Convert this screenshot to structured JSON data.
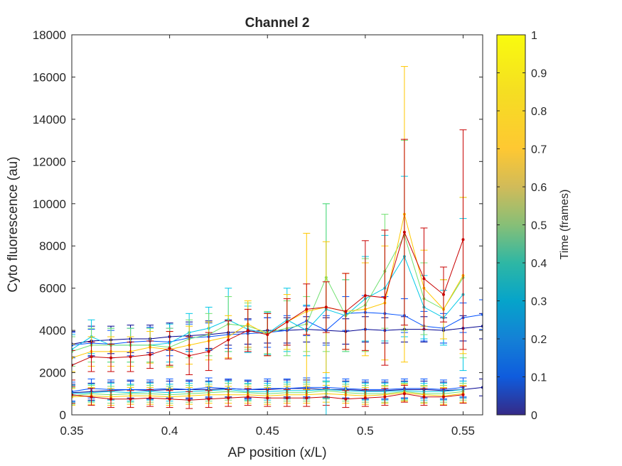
{
  "chart_data": {
    "type": "line",
    "title": "Channel 2",
    "xlabel": "AP position (x/L)",
    "ylabel": "Cyto fluorescence (au)",
    "xlim": [
      0.35,
      0.56
    ],
    "ylim": [
      0,
      18000
    ],
    "xticks": [
      "0.35",
      "0.4",
      "0.45",
      "0.5",
      "0.55"
    ],
    "yticks": [
      "0",
      "2000",
      "4000",
      "6000",
      "8000",
      "10000",
      "12000",
      "14000",
      "16000",
      "18000"
    ],
    "x": [
      0.35,
      0.36,
      0.37,
      0.38,
      0.39,
      0.4,
      0.41,
      0.42,
      0.43,
      0.44,
      0.45,
      0.46,
      0.47,
      0.48,
      0.49,
      0.5,
      0.51,
      0.52,
      0.53,
      0.54,
      0.55,
      0.56
    ],
    "error_bars": true,
    "colormap": "jet",
    "colorbar": {
      "label": "Time (frames)",
      "ticks": [
        "0",
        "0.1",
        "0.2",
        "0.3",
        "0.4",
        "0.5",
        "0.6",
        "0.7",
        "0.8",
        "0.9",
        "1"
      ],
      "range": [
        0,
        1
      ]
    },
    "series": [
      {
        "t": 0.0,
        "color": "#00008f",
        "values": [
          3350,
          3500,
          3550,
          3600,
          3600,
          3700,
          3750,
          3800,
          3900,
          3950,
          4000,
          4000,
          4050,
          4000,
          3950,
          4050,
          4000,
          4050,
          4050,
          4000,
          4100,
          4200
        ],
        "errors": [
          600,
          700,
          650,
          650,
          650,
          650,
          650,
          650,
          600,
          600,
          600,
          600,
          600,
          600,
          600,
          600,
          600,
          600,
          600,
          600,
          600,
          600
        ]
      },
      {
        "t": 0.15,
        "color": "#0050ff",
        "values": [
          3300,
          3400,
          3350,
          3450,
          3500,
          3450,
          3650,
          3700,
          3800,
          3850,
          3900,
          4000,
          4450,
          4000,
          4800,
          4850,
          4800,
          4700,
          4200,
          4100,
          4600,
          4750
        ],
        "errors": [
          600,
          650,
          650,
          650,
          650,
          650,
          650,
          650,
          650,
          650,
          700,
          700,
          700,
          700,
          800,
          800,
          800,
          800,
          700,
          700,
          700,
          700
        ]
      },
      {
        "t": 0.4,
        "color": "#00c8e6",
        "values": [
          3100,
          3700,
          3300,
          3300,
          3300,
          3400,
          3900,
          4100,
          4500,
          4050,
          3850,
          4500,
          4000,
          5000,
          4700,
          5500,
          6000,
          7500,
          5100,
          4600,
          5700,
          null
        ],
        "errors": [
          700,
          800,
          800,
          800,
          800,
          900,
          900,
          1000,
          1500,
          1100,
          1000,
          1500,
          1200,
          5000,
          1700,
          2000,
          2500,
          3800,
          1500,
          1300,
          3600,
          null
        ]
      },
      {
        "t": 0.6,
        "color": "#70e070",
        "values": [
          3000,
          3300,
          3300,
          3300,
          3300,
          3200,
          3600,
          3800,
          4300,
          4200,
          3900,
          4100,
          4300,
          6500,
          4700,
          5200,
          6800,
          8500,
          5500,
          5000,
          6500,
          null
        ],
        "errors": [
          700,
          800,
          800,
          800,
          800,
          900,
          900,
          1000,
          1300,
          1100,
          1000,
          1300,
          1300,
          3500,
          1700,
          2200,
          2700,
          4500,
          1700,
          1400,
          3800,
          null
        ]
      },
      {
        "t": 0.85,
        "color": "#ffc800",
        "values": [
          2700,
          3000,
          3000,
          3000,
          3200,
          3100,
          3300,
          3500,
          3700,
          4300,
          3800,
          4400,
          4900,
          5100,
          4900,
          5000,
          5300,
          9500,
          6000,
          5000,
          6600,
          null
        ],
        "errors": [
          650,
          700,
          700,
          700,
          750,
          850,
          900,
          900,
          1000,
          1100,
          1000,
          1300,
          3700,
          3100,
          1800,
          2200,
          2700,
          7000,
          1800,
          1400,
          3700,
          null
        ]
      },
      {
        "t": 1.0,
        "color": "#c80000",
        "values": [
          2350,
          2750,
          2700,
          2750,
          2850,
          3150,
          2800,
          3000,
          3550,
          4000,
          3800,
          4400,
          5000,
          5100,
          4900,
          5650,
          5550,
          8650,
          6450,
          5700,
          8300,
          null
        ],
        "errors": [
          700,
          700,
          650,
          700,
          650,
          800,
          900,
          900,
          900,
          1000,
          1000,
          1100,
          1200,
          1200,
          1800,
          2600,
          3200,
          4400,
          2400,
          1300,
          5200,
          null
        ]
      }
    ],
    "lower_series": [
      {
        "t": 0.0,
        "color": "#00008f",
        "values": [
          1050,
          1100,
          1150,
          1200,
          1150,
          1200,
          1200,
          1200,
          1250,
          1200,
          1200,
          1250,
          1250,
          1200,
          1200,
          1150,
          1150,
          1200,
          1200,
          1150,
          1200,
          1300
        ],
        "errors": [
          400,
          400,
          400,
          400,
          400,
          400,
          400,
          400,
          400,
          400,
          400,
          400,
          400,
          400,
          400,
          400,
          400,
          400,
          400,
          400,
          400,
          400
        ]
      },
      {
        "t": 0.15,
        "color": "#0050ff",
        "values": [
          1100,
          1250,
          1200,
          1200,
          1200,
          1250,
          1200,
          1300,
          1250,
          1200,
          1250,
          1250,
          1300,
          1300,
          1250,
          1200,
          1200,
          1250,
          1250,
          1200,
          1300,
          null
        ],
        "errors": [
          450,
          450,
          450,
          450,
          450,
          450,
          450,
          450,
          450,
          450,
          450,
          450,
          450,
          450,
          450,
          450,
          450,
          450,
          450,
          450,
          450,
          null
        ]
      },
      {
        "t": 0.4,
        "color": "#00c8e6",
        "values": [
          1000,
          1050,
          1100,
          1050,
          1100,
          1050,
          1100,
          1150,
          1200,
          1100,
          1100,
          1150,
          1150,
          1200,
          1150,
          1100,
          1100,
          1150,
          1100,
          1100,
          1200,
          null
        ],
        "errors": [
          400,
          400,
          400,
          400,
          400,
          400,
          400,
          400,
          400,
          400,
          400,
          400,
          400,
          400,
          400,
          400,
          400,
          400,
          400,
          400,
          400,
          null
        ]
      },
      {
        "t": 0.6,
        "color": "#70e070",
        "values": [
          900,
          1000,
          950,
          1000,
          1000,
          950,
          1000,
          1050,
          1100,
          1050,
          1000,
          1050,
          1050,
          1150,
          1050,
          1000,
          1000,
          1100,
          1000,
          1000,
          1100,
          null
        ],
        "errors": [
          400,
          400,
          400,
          400,
          400,
          400,
          400,
          400,
          400,
          400,
          400,
          400,
          400,
          400,
          400,
          400,
          400,
          400,
          400,
          400,
          400,
          null
        ]
      },
      {
        "t": 0.85,
        "color": "#ffc800",
        "values": [
          850,
          900,
          850,
          900,
          900,
          850,
          900,
          950,
          950,
          950,
          900,
          950,
          950,
          1000,
          950,
          900,
          950,
          1050,
          950,
          900,
          1000,
          null
        ],
        "errors": [
          400,
          400,
          400,
          400,
          400,
          400,
          400,
          400,
          400,
          400,
          400,
          400,
          400,
          400,
          400,
          400,
          400,
          400,
          400,
          400,
          400,
          null
        ]
      },
      {
        "t": 1.0,
        "color": "#c80000",
        "values": [
          950,
          850,
          750,
          750,
          800,
          750,
          700,
          750,
          800,
          850,
          800,
          800,
          800,
          850,
          750,
          800,
          850,
          1000,
          850,
          850,
          950,
          null
        ],
        "errors": [
          400,
          400,
          400,
          400,
          400,
          400,
          400,
          400,
          400,
          400,
          400,
          400,
          400,
          400,
          400,
          400,
          400,
          400,
          400,
          400,
          400,
          null
        ]
      }
    ]
  }
}
